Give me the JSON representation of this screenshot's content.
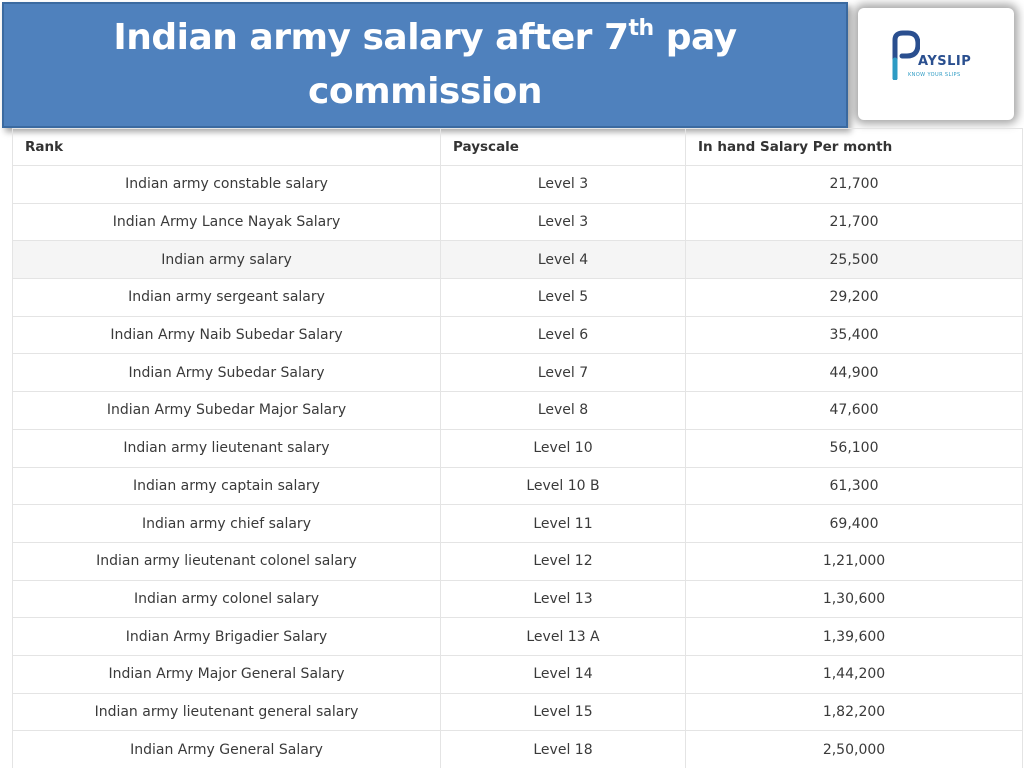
{
  "title": {
    "line1_prefix": "Indian army salary after 7",
    "superscript": "th",
    "line1_suffix": " pay",
    "line2": "commission"
  },
  "logo": {
    "brand": "AYSLIP",
    "tagline": "KNOW YOUR SLIPS"
  },
  "table": {
    "headers": [
      "Rank",
      "Payscale",
      "In hand Salary Per month"
    ],
    "rows": [
      {
        "rank": "Indian army constable salary",
        "payscale": "Level 3",
        "salary": "21,700"
      },
      {
        "rank": "Indian Army Lance Nayak Salary",
        "payscale": "Level 3",
        "salary": "21,700"
      },
      {
        "rank": "Indian army salary",
        "payscale": "Level 4",
        "salary": "25,500"
      },
      {
        "rank": "Indian army sergeant salary",
        "payscale": "Level 5",
        "salary": "29,200"
      },
      {
        "rank": "Indian Army Naib Subedar Salary",
        "payscale": "Level 6",
        "salary": "35,400"
      },
      {
        "rank": "Indian Army Subedar Salary",
        "payscale": "Level 7",
        "salary": "44,900"
      },
      {
        "rank": "Indian Army Subedar Major Salary",
        "payscale": "Level 8",
        "salary": "47,600"
      },
      {
        "rank": "Indian army lieutenant salary",
        "payscale": "Level 10",
        "salary": "56,100"
      },
      {
        "rank": "Indian army captain salary",
        "payscale": "Level 10 B",
        "salary": "61,300"
      },
      {
        "rank": "Indian army chief salary",
        "payscale": "Level 11",
        "salary": "69,400"
      },
      {
        "rank": "Indian army lieutenant colonel salary",
        "payscale": "Level 12",
        "salary": "1,21,000"
      },
      {
        "rank": "Indian army colonel salary",
        "payscale": "Level 13",
        "salary": "1,30,600"
      },
      {
        "rank": "Indian Army Brigadier Salary",
        "payscale": "Level 13 A",
        "salary": "1,39,600"
      },
      {
        "rank": "Indian Army Major General Salary",
        "payscale": "Level 14",
        "salary": "1,44,200"
      },
      {
        "rank": "Indian army lieutenant general salary",
        "payscale": "Level 15",
        "salary": "1,82,200"
      },
      {
        "rank": "Indian Army General Salary",
        "payscale": "Level 18",
        "salary": "2,50,000"
      }
    ]
  },
  "colors": {
    "title_background": "#4f81bd",
    "logo_primary": "#2a4f8f",
    "logo_accent": "#2d9bc4"
  }
}
